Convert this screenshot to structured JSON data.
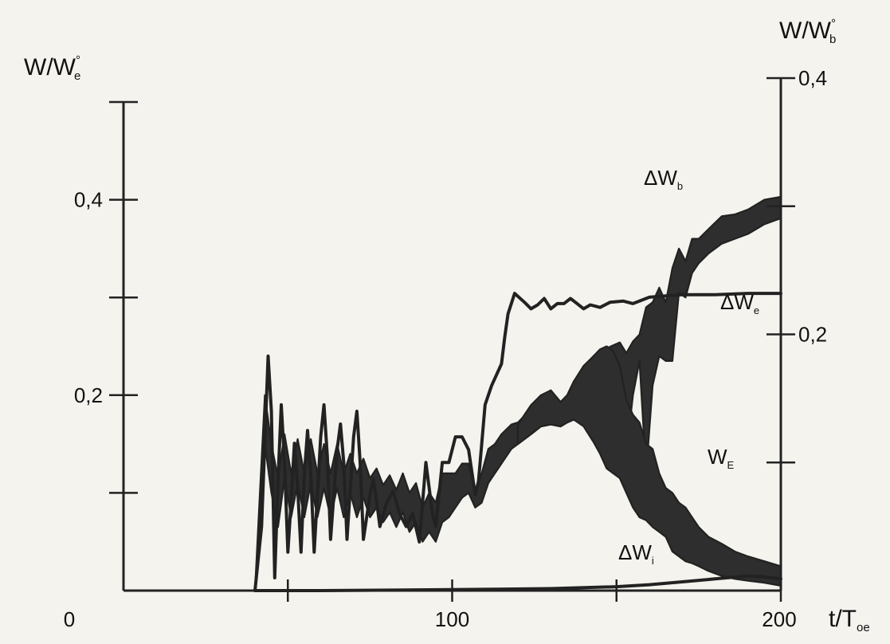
{
  "chart_data": {
    "type": "line",
    "title": "",
    "xlabel": {
      "main": "t/T",
      "sub": "oe"
    },
    "ylabel_left": {
      "main": "W/W",
      "sup": "°",
      "sub": "e"
    },
    "ylabel_right": {
      "main": "W/W",
      "sup": "°",
      "sub": "b"
    },
    "xlim": [
      0,
      200
    ],
    "x_ticks": [
      0,
      50,
      100,
      150,
      200
    ],
    "x_tick_labels": [
      {
        "value": 0,
        "label": "0"
      },
      {
        "value": 100,
        "label": "100"
      },
      {
        "value": 200,
        "label": "200"
      }
    ],
    "ylim_left": [
      0,
      0.5
    ],
    "y_ticks_left": [
      0.1,
      0.2,
      0.3,
      0.4,
      0.5
    ],
    "y_tick_labels_left": [
      {
        "value": 0.2,
        "label": "0,2"
      },
      {
        "value": 0.4,
        "label": "0,4"
      }
    ],
    "ylim_right": [
      0,
      0.4
    ],
    "y_ticks_right": [
      0.1,
      0.2,
      0.3,
      0.4
    ],
    "y_tick_labels_right": [
      {
        "value": 0.2,
        "label": "0,2"
      },
      {
        "value": 0.4,
        "label": "0,4"
      }
    ],
    "grid": false,
    "legend": "none",
    "series": [
      {
        "name": "ΔW_b",
        "label_main": "ΔW",
        "label_sub": "b",
        "axis": "right",
        "style": "line",
        "points": [
          [
            40,
            0
          ],
          [
            42,
            0.05
          ],
          [
            44,
            0.183
          ],
          [
            45,
            0.14
          ],
          [
            46,
            0.01
          ],
          [
            47,
            0.086
          ],
          [
            48,
            0.145
          ],
          [
            49,
            0.1
          ],
          [
            50,
            0.03
          ],
          [
            51,
            0.07
          ],
          [
            52,
            0.115
          ],
          [
            53,
            0.08
          ],
          [
            54,
            0.03
          ],
          [
            55,
            0.09
          ],
          [
            56,
            0.125
          ],
          [
            57,
            0.09
          ],
          [
            58,
            0.03
          ],
          [
            60,
            0.12
          ],
          [
            61,
            0.145
          ],
          [
            62,
            0.105
          ],
          [
            63,
            0.04
          ],
          [
            65,
            0.11
          ],
          [
            66,
            0.13
          ],
          [
            67,
            0.1
          ],
          [
            68,
            0.04
          ],
          [
            70,
            0.12
          ],
          [
            71,
            0.14
          ],
          [
            72,
            0.1
          ],
          [
            73,
            0.04
          ],
          [
            75,
            0.075
          ],
          [
            76,
            0.087
          ],
          [
            77,
            0.07
          ],
          [
            78,
            0.05
          ],
          [
            80,
            0.068
          ],
          [
            82,
            0.078
          ],
          [
            84,
            0.06
          ],
          [
            86,
            0.05
          ],
          [
            88,
            0.06
          ],
          [
            90,
            0.038
          ],
          [
            92,
            0.1
          ],
          [
            94,
            0.06
          ],
          [
            95,
            0.05
          ],
          [
            97,
            0.1
          ],
          [
            99,
            0.1
          ],
          [
            101,
            0.12
          ],
          [
            103,
            0.12
          ],
          [
            105,
            0.11
          ],
          [
            107,
            0.075
          ],
          [
            108,
            0.085
          ],
          [
            110,
            0.145
          ],
          [
            112,
            0.16
          ],
          [
            115,
            0.177
          ],
          [
            116,
            0.198
          ],
          [
            117,
            0.216
          ],
          [
            119,
            0.232
          ],
          [
            122,
            0.225
          ],
          [
            124,
            0.22
          ],
          [
            126,
            0.223
          ],
          [
            128,
            0.228
          ],
          [
            130,
            0.22
          ],
          [
            132,
            0.224
          ],
          [
            134,
            0.224
          ],
          [
            136,
            0.228
          ],
          [
            138,
            0.224
          ],
          [
            140,
            0.22
          ],
          [
            142,
            0.223
          ],
          [
            145,
            0.221
          ],
          [
            148,
            0.225
          ],
          [
            152,
            0.226
          ],
          [
            155,
            0.224
          ],
          [
            160,
            0.229
          ],
          [
            165,
            0.23
          ],
          [
            170,
            0.231
          ],
          [
            175,
            0.231
          ],
          [
            180,
            0.231
          ],
          [
            190,
            0.232
          ],
          [
            200,
            0.232
          ]
        ]
      },
      {
        "name": "ΔW_e",
        "label_main": "ΔW",
        "label_sub": "e",
        "axis": "left",
        "style": "band",
        "upper": [
          [
            40,
            0
          ],
          [
            43,
            0.2
          ],
          [
            45,
            0.15
          ],
          [
            47,
            0.115
          ],
          [
            49,
            0.16
          ],
          [
            51,
            0.12
          ],
          [
            53,
            0.155
          ],
          [
            55,
            0.12
          ],
          [
            57,
            0.155
          ],
          [
            59,
            0.12
          ],
          [
            61,
            0.15
          ],
          [
            63,
            0.12
          ],
          [
            65,
            0.15
          ],
          [
            67,
            0.12
          ],
          [
            69,
            0.14
          ],
          [
            71,
            0.12
          ],
          [
            73,
            0.135
          ],
          [
            75,
            0.115
          ],
          [
            77,
            0.125
          ],
          [
            79,
            0.108
          ],
          [
            81,
            0.118
          ],
          [
            83,
            0.103
          ],
          [
            85,
            0.12
          ],
          [
            87,
            0.1
          ],
          [
            89,
            0.11
          ],
          [
            91,
            0.085
          ],
          [
            93,
            0.1
          ],
          [
            95,
            0.09
          ],
          [
            97,
            0.12
          ],
          [
            99,
            0.12
          ],
          [
            101,
            0.12
          ],
          [
            103,
            0.13
          ],
          [
            105,
            0.13
          ],
          [
            107,
            0.1
          ],
          [
            109,
            0.12
          ],
          [
            111,
            0.145
          ],
          [
            113,
            0.15
          ],
          [
            115,
            0.16
          ],
          [
            118,
            0.17
          ],
          [
            120,
            0.172
          ],
          [
            124,
            0.186
          ],
          [
            127,
            0.192
          ],
          [
            130,
            0.205
          ],
          [
            133,
            0.193
          ],
          [
            135,
            0.2
          ],
          [
            137,
            0.214
          ],
          [
            140,
            0.225
          ],
          [
            143,
            0.24
          ],
          [
            145,
            0.244
          ],
          [
            147,
            0.248
          ],
          [
            149,
            0.251
          ],
          [
            151,
            0.254
          ],
          [
            153,
            0.243
          ],
          [
            155,
            0.255
          ],
          [
            157,
            0.262
          ],
          [
            159,
            0.29
          ],
          [
            161,
            0.295
          ],
          [
            163,
            0.31
          ],
          [
            165,
            0.295
          ],
          [
            167,
            0.33
          ],
          [
            169,
            0.35
          ],
          [
            171,
            0.337
          ],
          [
            173,
            0.36
          ],
          [
            175,
            0.36
          ],
          [
            178,
            0.37
          ],
          [
            182,
            0.383
          ],
          [
            186,
            0.385
          ],
          [
            190,
            0.39
          ],
          [
            195,
            0.4
          ],
          [
            200,
            0.403
          ]
        ],
        "lower": [
          [
            40,
            0
          ],
          [
            43,
            0.15
          ],
          [
            45,
            0.1
          ],
          [
            47,
            0.065
          ],
          [
            49,
            0.115
          ],
          [
            51,
            0.075
          ],
          [
            53,
            0.11
          ],
          [
            55,
            0.075
          ],
          [
            57,
            0.11
          ],
          [
            59,
            0.075
          ],
          [
            61,
            0.105
          ],
          [
            63,
            0.075
          ],
          [
            65,
            0.105
          ],
          [
            67,
            0.075
          ],
          [
            69,
            0.1
          ],
          [
            71,
            0.075
          ],
          [
            73,
            0.095
          ],
          [
            75,
            0.075
          ],
          [
            77,
            0.085
          ],
          [
            79,
            0.07
          ],
          [
            81,
            0.08
          ],
          [
            83,
            0.065
          ],
          [
            85,
            0.08
          ],
          [
            87,
            0.06
          ],
          [
            89,
            0.07
          ],
          [
            91,
            0.05
          ],
          [
            93,
            0.06
          ],
          [
            95,
            0.05
          ],
          [
            97,
            0.07
          ],
          [
            99,
            0.075
          ],
          [
            101,
            0.085
          ],
          [
            103,
            0.095
          ],
          [
            105,
            0.1
          ],
          [
            107,
            0.085
          ],
          [
            109,
            0.09
          ],
          [
            111,
            0.11
          ],
          [
            113,
            0.12
          ],
          [
            115,
            0.13
          ],
          [
            118,
            0.145
          ],
          [
            120,
            0.15
          ],
          [
            124,
            0.16
          ],
          [
            127,
            0.168
          ],
          [
            130,
            0.17
          ],
          [
            133,
            0.168
          ],
          [
            135,
            0.172
          ],
          [
            137,
            0.175
          ],
          [
            140,
            0.18
          ],
          [
            143,
            0.185
          ],
          [
            145,
            0.19
          ],
          [
            147,
            0.165
          ],
          [
            149,
            0.12
          ],
          [
            151,
            0.12
          ],
          [
            153,
            0.14
          ],
          [
            155,
            0.2
          ],
          [
            157,
            0.235
          ],
          [
            159,
            0.12
          ],
          [
            161,
            0.21
          ],
          [
            163,
            0.24
          ],
          [
            165,
            0.235
          ],
          [
            167,
            0.235
          ],
          [
            169,
            0.305
          ],
          [
            171,
            0.3
          ],
          [
            173,
            0.325
          ],
          [
            175,
            0.335
          ],
          [
            178,
            0.345
          ],
          [
            182,
            0.355
          ],
          [
            186,
            0.36
          ],
          [
            190,
            0.365
          ],
          [
            195,
            0.375
          ],
          [
            200,
            0.381
          ]
        ]
      },
      {
        "name": "W_E",
        "label_main": "W",
        "label_sub": "E",
        "axis": "left",
        "style": "band",
        "upper": [
          [
            120,
            0.17
          ],
          [
            124,
            0.19
          ],
          [
            127,
            0.2
          ],
          [
            130,
            0.205
          ],
          [
            133,
            0.193
          ],
          [
            135,
            0.2
          ],
          [
            137,
            0.214
          ],
          [
            140,
            0.23
          ],
          [
            143,
            0.24
          ],
          [
            145,
            0.247
          ],
          [
            147,
            0.25
          ],
          [
            149,
            0.245
          ],
          [
            151,
            0.23
          ],
          [
            153,
            0.195
          ],
          [
            155,
            0.18
          ],
          [
            157,
            0.172
          ],
          [
            159,
            0.15
          ],
          [
            161,
            0.145
          ],
          [
            163,
            0.12
          ],
          [
            165,
            0.105
          ],
          [
            167,
            0.1
          ],
          [
            169,
            0.09
          ],
          [
            171,
            0.085
          ],
          [
            173,
            0.075
          ],
          [
            175,
            0.065
          ],
          [
            178,
            0.055
          ],
          [
            182,
            0.048
          ],
          [
            186,
            0.04
          ],
          [
            190,
            0.035
          ],
          [
            195,
            0.03
          ],
          [
            200,
            0.025
          ]
        ],
        "lower": [
          [
            120,
            0.15
          ],
          [
            124,
            0.16
          ],
          [
            127,
            0.168
          ],
          [
            130,
            0.17
          ],
          [
            133,
            0.168
          ],
          [
            135,
            0.172
          ],
          [
            137,
            0.175
          ],
          [
            140,
            0.168
          ],
          [
            143,
            0.152
          ],
          [
            145,
            0.14
          ],
          [
            147,
            0.125
          ],
          [
            149,
            0.12
          ],
          [
            151,
            0.115
          ],
          [
            153,
            0.1
          ],
          [
            155,
            0.085
          ],
          [
            157,
            0.075
          ],
          [
            159,
            0.072
          ],
          [
            161,
            0.065
          ],
          [
            163,
            0.06
          ],
          [
            165,
            0.055
          ],
          [
            167,
            0.04
          ],
          [
            169,
            0.035
          ],
          [
            171,
            0.03
          ],
          [
            173,
            0.028
          ],
          [
            175,
            0.025
          ],
          [
            178,
            0.02
          ],
          [
            182,
            0.015
          ],
          [
            186,
            0.012
          ],
          [
            190,
            0.01
          ],
          [
            195,
            0.008
          ],
          [
            200,
            0.005
          ]
        ]
      },
      {
        "name": "ΔW_i",
        "label_main": "ΔW",
        "label_sub": "i",
        "axis": "left",
        "style": "line",
        "points": [
          [
            40,
            0
          ],
          [
            60,
            0
          ],
          [
            100,
            0.001
          ],
          [
            130,
            0.002
          ],
          [
            150,
            0.004
          ],
          [
            160,
            0.006
          ],
          [
            170,
            0.009
          ],
          [
            180,
            0.012
          ],
          [
            190,
            0.015
          ],
          [
            195,
            0.014
          ],
          [
            200,
            0.012
          ]
        ]
      }
    ],
    "colors": {
      "ink": "#222222",
      "band_fill": "#2e2e2e",
      "background": "#f4f3ee"
    }
  }
}
